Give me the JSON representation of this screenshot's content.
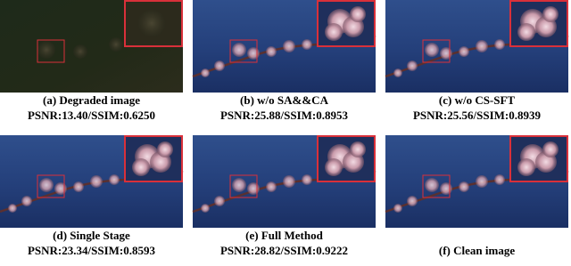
{
  "panels": [
    {
      "caption": "(a) Degraded image",
      "metrics": "PSNR:13.40/SSIM:0.6250"
    },
    {
      "caption": "(b) w/o SA&&CA",
      "metrics": "PSNR:25.88/SSIM:0.8953"
    },
    {
      "caption": "(c) w/o CS-SFT",
      "metrics": "PSNR:25.56/SSIM:0.8939"
    },
    {
      "caption": "(d) Single Stage",
      "metrics": "PSNR:23.34/SSIM:0.8593"
    },
    {
      "caption": "(e) Full Method",
      "metrics": "PSNR:28.82/SSIM:0.9222"
    },
    {
      "caption": "(f) Clean image"
    }
  ]
}
